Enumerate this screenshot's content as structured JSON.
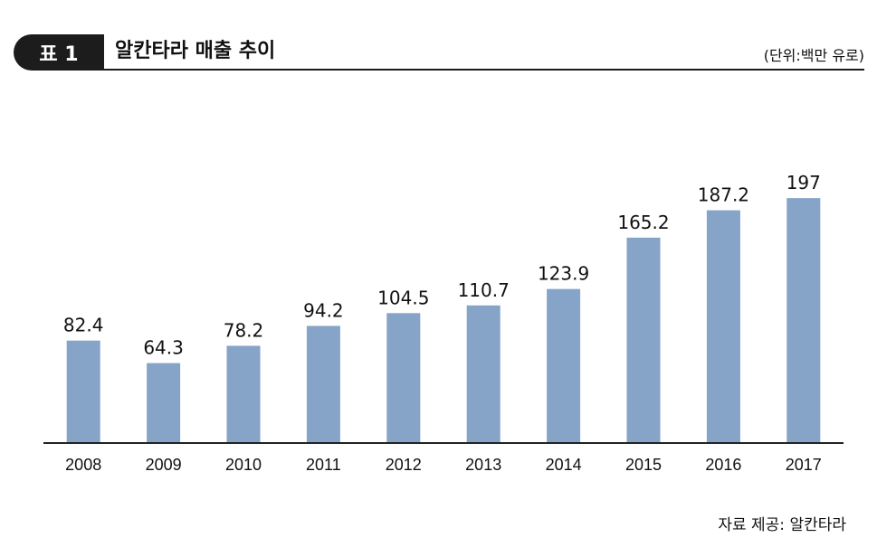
{
  "header": {
    "badge": "표 1",
    "title": "알칸타라 매출 추이",
    "unit": "(단위:백만 유로)"
  },
  "chart_data": {
    "type": "bar",
    "categories": [
      "2008",
      "2009",
      "2010",
      "2011",
      "2012",
      "2013",
      "2014",
      "2015",
      "2016",
      "2017"
    ],
    "values": [
      82.4,
      64.3,
      78.2,
      94.2,
      104.5,
      110.7,
      123.9,
      165.2,
      187.2,
      197
    ],
    "value_labels": [
      "82.4",
      "64.3",
      "78.2",
      "94.2",
      "104.5",
      "110.7",
      "123.9",
      "165.2",
      "187.2",
      "197"
    ],
    "ylim": [
      0,
      200
    ],
    "grid": false,
    "bar_color": "#86a3c8",
    "axis_color": "#222222"
  },
  "footer": {
    "source": "자료 제공: 알칸타라"
  }
}
